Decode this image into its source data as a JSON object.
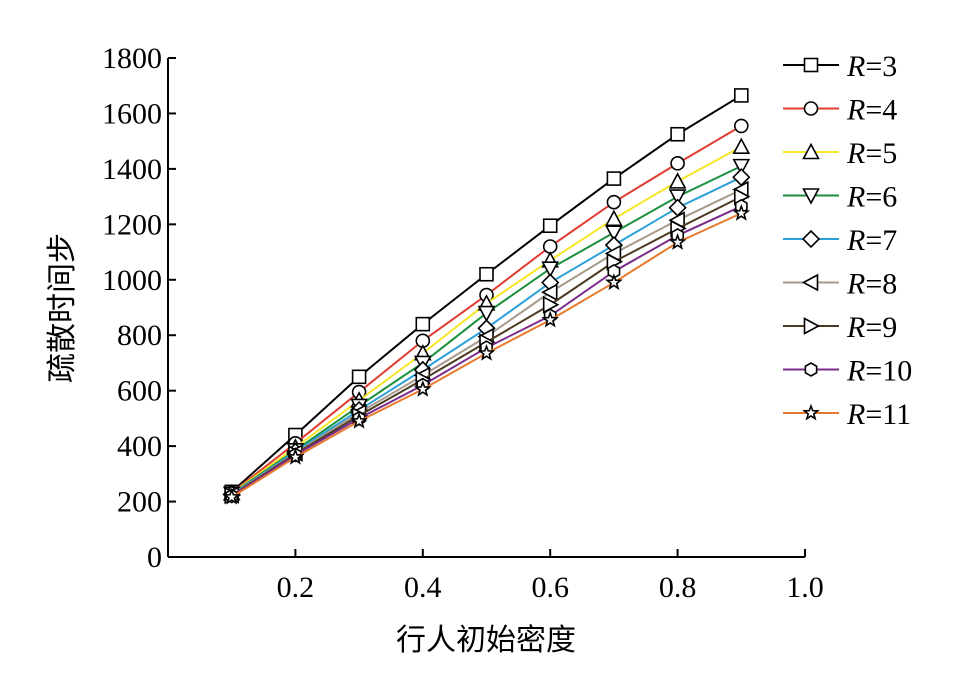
{
  "chart_data": {
    "type": "line",
    "title": "",
    "xlabel": "行人初始密度",
    "ylabel": "疏散时间步",
    "xlim": [
      0.0,
      1.0
    ],
    "ylim": [
      0,
      1800
    ],
    "xticks": [
      0.2,
      0.4,
      0.6,
      0.8,
      1.0
    ],
    "xtick_labels": [
      "0.2",
      "0.4",
      "0.6",
      "0.8",
      "1.0"
    ],
    "yticks": [
      0,
      200,
      400,
      600,
      800,
      1000,
      1200,
      1400,
      1600,
      1800
    ],
    "ytick_labels": [
      "0",
      "200",
      "400",
      "600",
      "800",
      "1000",
      "1200",
      "1400",
      "1600",
      "1800"
    ],
    "grid": false,
    "legend_position": "right",
    "x": [
      0.1,
      0.2,
      0.3,
      0.4,
      0.5,
      0.6,
      0.7,
      0.8,
      0.9
    ],
    "series": [
      {
        "var": "R",
        "eq": "=3",
        "color": "#000000",
        "marker": "square",
        "values": [
          235,
          440,
          650,
          840,
          1020,
          1195,
          1365,
          1525,
          1665
        ]
      },
      {
        "var": "R",
        "eq": "=4",
        "color": "#e03c31",
        "marker": "circle",
        "values": [
          232,
          410,
          595,
          780,
          945,
          1120,
          1280,
          1420,
          1555
        ]
      },
      {
        "var": "R",
        "eq": "=5",
        "color": "#f5e626",
        "marker": "triangle-up",
        "values": [
          230,
          395,
          565,
          735,
          915,
          1070,
          1220,
          1355,
          1480
        ]
      },
      {
        "var": "R",
        "eq": "=6",
        "color": "#1a8f3c",
        "marker": "triangle-down",
        "values": [
          228,
          385,
          545,
          700,
          880,
          1040,
          1170,
          1300,
          1410
        ]
      },
      {
        "var": "R",
        "eq": "=7",
        "color": "#2a9fd8",
        "marker": "diamond",
        "values": [
          226,
          380,
          530,
          675,
          825,
          990,
          1125,
          1260,
          1370
        ]
      },
      {
        "var": "R",
        "eq": "=8",
        "color": "#a89a8a",
        "marker": "triangle-left",
        "values": [
          224,
          375,
          520,
          655,
          795,
          955,
          1095,
          1215,
          1325
        ]
      },
      {
        "var": "R",
        "eq": "=9",
        "color": "#4d3a22",
        "marker": "triangle-right",
        "values": [
          222,
          372,
          510,
          640,
          775,
          910,
          1065,
          1185,
          1300
        ]
      },
      {
        "var": "R",
        "eq": "=10",
        "color": "#7b2b8b",
        "marker": "hexagon",
        "values": [
          220,
          368,
          500,
          620,
          755,
          870,
          1030,
          1160,
          1265
        ]
      },
      {
        "var": "R",
        "eq": "=11",
        "color": "#e87a2e",
        "marker": "star",
        "values": [
          216,
          360,
          490,
          605,
          735,
          855,
          990,
          1135,
          1240
        ]
      }
    ]
  }
}
